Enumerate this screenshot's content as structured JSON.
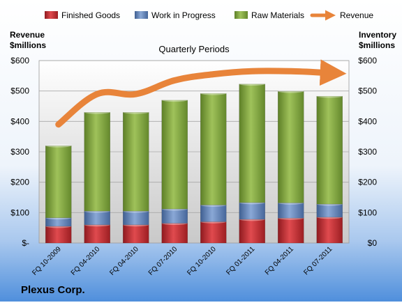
{
  "chart_data": {
    "type": "bar",
    "stacked": true,
    "title": "Quarterly Periods",
    "company": "Plexus Corp.",
    "categories": [
      "FQ 10-2009",
      "FQ 04-2010",
      "FQ 04-2010",
      "FQ 07-2010",
      "FQ 10-2010",
      "FQ 01-2011",
      "FQ 04-2011",
      "FQ 07-2011"
    ],
    "series": [
      {
        "name": "Finished Goods",
        "color": "#c0282d",
        "values": [
          55,
          60,
          60,
          65,
          70,
          78,
          82,
          85
        ]
      },
      {
        "name": "Work in Progress",
        "color": "#5a7fb5",
        "values": [
          28,
          45,
          45,
          47,
          55,
          55,
          50,
          43
        ]
      },
      {
        "name": "Raw Materials",
        "color": "#7fa43c",
        "values": [
          237,
          325,
          325,
          358,
          367,
          390,
          367,
          355
        ]
      }
    ],
    "revenue": {
      "name": "Revenue",
      "color": "#e8843a",
      "values": [
        390,
        490,
        490,
        535,
        555,
        565,
        565,
        560
      ]
    },
    "left_axis": {
      "label_line1": "Revenue",
      "label_line2": "$millions",
      "ticks": [
        "$-",
        "$100",
        "$200",
        "$300",
        "$400",
        "$500",
        "$600"
      ]
    },
    "right_axis": {
      "label_line1": "Inventory",
      "label_line2": "$millions",
      "ticks": [
        "$0",
        "$100",
        "$200",
        "$300",
        "$400",
        "$500",
        "$600"
      ]
    },
    "ylim": [
      0,
      600
    ],
    "grid": true,
    "legend_position": "top"
  }
}
